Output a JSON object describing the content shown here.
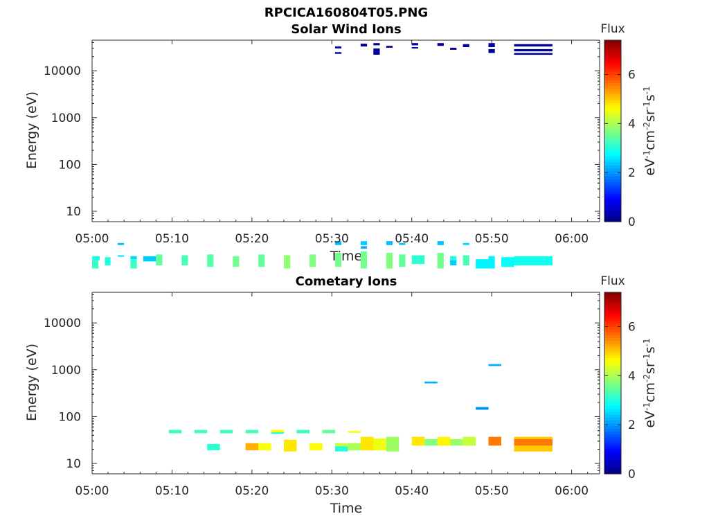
{
  "figure": {
    "title": "RPCICA160804T05.PNG"
  },
  "chart_data": [
    {
      "type": "heatmap",
      "title": "Solar Wind Ions",
      "xlabel": "Time",
      "ylabel": "Energy (eV)",
      "x_ticks": [
        "05:00",
        "05:10",
        "05:20",
        "05:30",
        "05:40",
        "05:50",
        "06:00"
      ],
      "x_range_minutes": [
        0,
        63.5
      ],
      "y_scale": "log",
      "y_ticks": [
        "10",
        "100",
        "1000",
        "10000"
      ],
      "y_range": [
        6,
        45000
      ],
      "colorbar": {
        "label_top": "Flux",
        "label": "eV-1cm-2sr-1s-1",
        "ticks": [
          "0",
          "2",
          "4",
          "6"
        ],
        "range": [
          0,
          7.4
        ],
        "colormap": "jet"
      },
      "cells": [
        [
          0.0,
          0.7,
          0.8,
          0.95,
          2.8
        ],
        [
          0.0,
          0.8,
          0.6,
          1.1,
          3.2
        ],
        [
          0.0,
          0.95,
          0.9,
          1.1,
          3.0
        ],
        [
          1.6,
          0.7,
          0.7,
          1.05,
          3.0
        ],
        [
          3.2,
          0.8,
          1.1,
          1.15,
          2.5
        ],
        [
          3.2,
          0.8,
          1.9,
          2.1,
          2.3
        ],
        [
          4.8,
          0.8,
          0.6,
          0.95,
          3.2
        ],
        [
          4.8,
          0.8,
          0.95,
          1.1,
          2.5
        ],
        [
          6.4,
          1.6,
          0.85,
          1.1,
          2.4
        ],
        [
          8.0,
          0.8,
          0.7,
          1.2,
          3.5
        ],
        [
          11.2,
          0.8,
          0.7,
          1.15,
          3.3
        ],
        [
          14.4,
          0.8,
          0.65,
          1.2,
          3.4
        ],
        [
          17.6,
          0.8,
          0.65,
          1.1,
          3.6
        ],
        [
          20.8,
          0.8,
          0.65,
          1.2,
          3.5
        ],
        [
          24.0,
          0.8,
          0.6,
          1.15,
          3.8
        ],
        [
          27.2,
          0.8,
          0.65,
          1.2,
          3.7
        ],
        [
          30.4,
          0.8,
          0.65,
          1.3,
          3.6
        ],
        [
          30.4,
          0.8,
          1.9,
          2.3,
          2.3
        ],
        [
          30.4,
          0.8,
          23000.0,
          25000.0,
          0.3
        ],
        [
          30.4,
          0.8,
          30000.0,
          33000.0,
          0.3
        ],
        [
          33.6,
          0.8,
          0.6,
          1.4,
          3.6
        ],
        [
          33.6,
          0.8,
          1.6,
          1.8,
          2.2
        ],
        [
          33.6,
          0.8,
          1.9,
          2.3,
          2.4
        ],
        [
          33.6,
          0.8,
          33000.0,
          38000.0,
          0.2
        ],
        [
          35.2,
          0.8,
          22000.0,
          30000.0,
          0.2
        ],
        [
          35.2,
          0.8,
          35000.0,
          39000.0,
          0.2
        ],
        [
          36.8,
          0.8,
          0.6,
          1.3,
          3.7
        ],
        [
          36.8,
          0.8,
          1.9,
          2.3,
          2.3
        ],
        [
          36.8,
          0.8,
          31000.0,
          34000.0,
          0.2
        ],
        [
          38.4,
          0.8,
          0.65,
          1.2,
          3.5
        ],
        [
          38.4,
          0.8,
          1.9,
          2.1,
          2.4
        ],
        [
          40.0,
          1.6,
          0.75,
          1.15,
          3.1
        ],
        [
          40.0,
          0.8,
          30000.0,
          32000.0,
          0.2
        ],
        [
          40.0,
          0.8,
          35000.0,
          39000.0,
          0.2
        ],
        [
          43.2,
          0.8,
          0.6,
          1.3,
          3.6
        ],
        [
          43.2,
          0.8,
          1.9,
          2.3,
          2.3
        ],
        [
          43.2,
          0.8,
          34000.0,
          39000.0,
          0.2
        ],
        [
          44.8,
          0.8,
          0.7,
          0.9,
          2.4
        ],
        [
          44.8,
          0.8,
          0.9,
          1.1,
          3.0
        ],
        [
          44.8,
          0.8,
          28000.0,
          31000.0,
          0.2
        ],
        [
          46.4,
          0.8,
          0.7,
          1.15,
          3.3
        ],
        [
          46.4,
          0.8,
          1.9,
          2.1,
          2.5
        ],
        [
          46.4,
          0.8,
          32000.0,
          37000.0,
          0.2
        ],
        [
          48.0,
          1.6,
          0.6,
          0.95,
          2.7
        ],
        [
          49.6,
          0.8,
          0.6,
          1.1,
          2.7
        ],
        [
          49.6,
          0.8,
          24000.0,
          29000.0,
          0.2
        ],
        [
          49.6,
          0.8,
          32000.0,
          39000.0,
          0.2
        ],
        [
          51.2,
          1.6,
          0.65,
          1.05,
          2.8
        ],
        [
          52.8,
          4.8,
          0.7,
          1.1,
          2.9
        ],
        [
          52.8,
          4.8,
          22000.0,
          24000.0,
          0.2
        ],
        [
          52.8,
          4.8,
          26000.0,
          29000.0,
          0.2
        ],
        [
          52.8,
          4.8,
          33000.0,
          37000.0,
          0.2
        ]
      ]
    },
    {
      "type": "heatmap",
      "title": "Cometary Ions",
      "xlabel": "Time",
      "ylabel": "Energy (eV)",
      "x_ticks": [
        "05:00",
        "05:10",
        "05:20",
        "05:30",
        "05:40",
        "05:50",
        "06:00"
      ],
      "x_range_minutes": [
        0,
        63.5
      ],
      "y_scale": "log",
      "y_ticks": [
        "10",
        "100",
        "1000",
        "10000"
      ],
      "y_range": [
        6,
        45000
      ],
      "colorbar": {
        "label_top": "Flux",
        "label": "eV-1cm-2sr-1s-1",
        "ticks": [
          "0",
          "2",
          "4",
          "6"
        ],
        "range": [
          0,
          7.4
        ],
        "colormap": "jet"
      },
      "cells": [
        [
          9.6,
          1.6,
          44,
          52,
          3.2
        ],
        [
          12.8,
          1.6,
          44,
          52,
          3.3
        ],
        [
          14.4,
          1.6,
          19,
          26,
          3.1
        ],
        [
          16.0,
          1.6,
          44,
          52,
          3.2
        ],
        [
          19.2,
          1.6,
          44,
          52,
          3.3
        ],
        [
          19.2,
          1.6,
          19,
          27,
          5.2
        ],
        [
          20.8,
          1.6,
          19,
          27,
          4.6
        ],
        [
          22.4,
          1.6,
          43,
          49,
          2.8
        ],
        [
          22.4,
          1.6,
          46,
          52,
          4.6
        ],
        [
          24.0,
          1.6,
          18,
          32,
          4.8
        ],
        [
          25.6,
          1.6,
          44,
          52,
          3.2
        ],
        [
          27.2,
          1.6,
          19,
          27,
          4.6
        ],
        [
          28.8,
          1.6,
          44,
          52,
          3.5
        ],
        [
          30.4,
          1.6,
          18,
          23,
          3.0
        ],
        [
          30.4,
          1.6,
          23,
          27,
          4.2
        ],
        [
          32.0,
          1.6,
          19,
          27,
          4.0
        ],
        [
          32.0,
          1.6,
          45,
          49,
          4.6
        ],
        [
          33.6,
          1.6,
          19,
          37,
          4.8
        ],
        [
          35.2,
          1.6,
          19,
          34,
          4.5
        ],
        [
          36.8,
          1.6,
          18,
          37,
          3.9
        ],
        [
          40.0,
          1.6,
          24,
          37,
          4.8
        ],
        [
          41.6,
          1.6,
          24,
          33,
          3.7
        ],
        [
          41.6,
          1.6,
          510,
          560,
          2.2
        ],
        [
          43.2,
          1.6,
          24,
          37,
          4.7
        ],
        [
          44.8,
          1.6,
          24,
          33,
          3.9
        ],
        [
          46.4,
          1.6,
          24,
          37,
          4.2
        ],
        [
          48.0,
          1.6,
          140,
          160,
          2.0
        ],
        [
          49.6,
          1.6,
          24,
          37,
          5.6
        ],
        [
          49.6,
          1.6,
          1200,
          1320,
          2.2
        ],
        [
          52.8,
          4.8,
          18,
          37,
          5.0
        ],
        [
          52.8,
          4.8,
          24,
          33,
          5.6
        ]
      ]
    }
  ]
}
